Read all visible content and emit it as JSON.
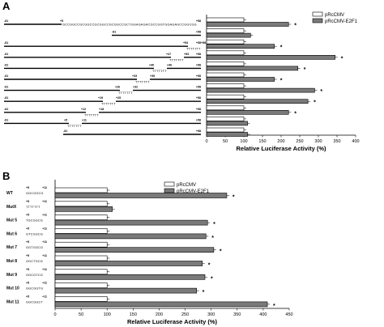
{
  "colors": {
    "control": "#ffffff",
    "e2f1": "#7a7a7a",
    "stroke": "#000000"
  },
  "chart_data": [
    {
      "type": "bar",
      "orientation": "horizontal",
      "panel": "A",
      "xlabel": "Relative Luciferase Activity (%)",
      "xlim": [
        0,
        400
      ],
      "xticks": [
        "0",
        "50",
        "100",
        "150",
        "200",
        "250",
        "300",
        "350",
        "400"
      ],
      "legend": {
        "position": "top-right",
        "entries": [
          "pRcCMV",
          "pRcCMV-E2F1"
        ]
      },
      "series": [
        {
          "name": "pRcCMV",
          "values": [
            100,
            100,
            100,
            100,
            100,
            100,
            100,
            100,
            100,
            100,
            100
          ]
        },
        {
          "name": "pRcCMV-E2F1",
          "values": [
            220,
            118,
            182,
            345,
            245,
            182,
            290,
            272,
            220,
            110,
            110
          ]
        }
      ],
      "significance": [
        true,
        false,
        true,
        true,
        true,
        true,
        true,
        true,
        true,
        false,
        false
      ],
      "star_label": "*",
      "constructs": [
        {
          "start": "-81",
          "end": "+58",
          "mid": "+5",
          "seq": "GCCGGCCGCGGCCGCGGCCGCGGCCGCTGGAGAGACGCCGGTGGAGAGCCGGCGG",
          "gap_label": "",
          "t_run": ""
        },
        {
          "start": "-81",
          "end": "+58",
          "mid": "",
          "seq": "",
          "gap_label": "",
          "t_run": ""
        },
        {
          "start": "-81",
          "end": "+58",
          "mid": "+54",
          "seq": "",
          "gap_label": "+58",
          "t_run": "TTTTTTT"
        },
        {
          "start": "-81",
          "end": "+58",
          "mid": "+47",
          "seq": "",
          "gap_label": "+53",
          "t_run": "TTTTTTT"
        },
        {
          "start": "-81",
          "end": "+58",
          "mid": "+40",
          "seq": "",
          "gap_label": "+46",
          "t_run": "TTTTTTT"
        },
        {
          "start": "-81",
          "end": "+58",
          "mid": "+33",
          "seq": "",
          "gap_label": "+39",
          "t_run": "TTTTTTT"
        },
        {
          "start": "-81",
          "end": "+58",
          "mid": "+26",
          "seq": "",
          "gap_label": "+32",
          "t_run": "TTTTTTT"
        },
        {
          "start": "-81",
          "end": "+58",
          "mid": "+19",
          "seq": "",
          "gap_label": "+25",
          "t_run": "TTTTTTT"
        },
        {
          "start": "-81",
          "end": "+58",
          "mid": "+12",
          "seq": "",
          "gap_label": "+18",
          "t_run": "TTTTTTT"
        },
        {
          "start": "-81",
          "end": "+58",
          "mid": "+5",
          "seq": "",
          "gap_label": "+11",
          "t_run": "TTTTTTT"
        },
        {
          "start": "-81",
          "end": "+58",
          "mid": "",
          "seq": "",
          "gap_label": "",
          "t_run": ""
        }
      ]
    },
    {
      "type": "bar",
      "orientation": "horizontal",
      "panel": "B",
      "xlabel": "Relative Luciferase Activity (%)",
      "xlim": [
        0,
        450
      ],
      "xticks": [
        "0",
        "50",
        "100",
        "150",
        "200",
        "250",
        "300",
        "350",
        "400",
        "450"
      ],
      "legend": {
        "position": "top-right",
        "entries": [
          "pRcCMV",
          "pRcCMV-E2F1"
        ]
      },
      "categories": [
        "WT",
        "MutX",
        "Mut 5",
        "Mut 6",
        "Mut 7",
        "Mut 8",
        "Mut 9",
        "Mut 10",
        "Mut 11"
      ],
      "coord_left": "+5",
      "coord_right": "+11",
      "sequences": [
        "GGCGGCG",
        "TTTTTTT",
        "TGCGGCG",
        "GTCGGCG",
        "GGTGGCG",
        "GGCTGCG",
        "GGCGTCG",
        "GGCGGTG",
        "GGCGGCT"
      ],
      "series": [
        {
          "name": "pRcCMV",
          "values": [
            100,
            100,
            100,
            100,
            100,
            100,
            100,
            100,
            100
          ]
        },
        {
          "name": "pRcCMV-E2F1",
          "values": [
            330,
            110,
            293,
            290,
            305,
            283,
            288,
            272,
            408
          ]
        }
      ],
      "significance": [
        true,
        false,
        true,
        true,
        true,
        true,
        true,
        true,
        true
      ],
      "star_label": "*"
    }
  ]
}
